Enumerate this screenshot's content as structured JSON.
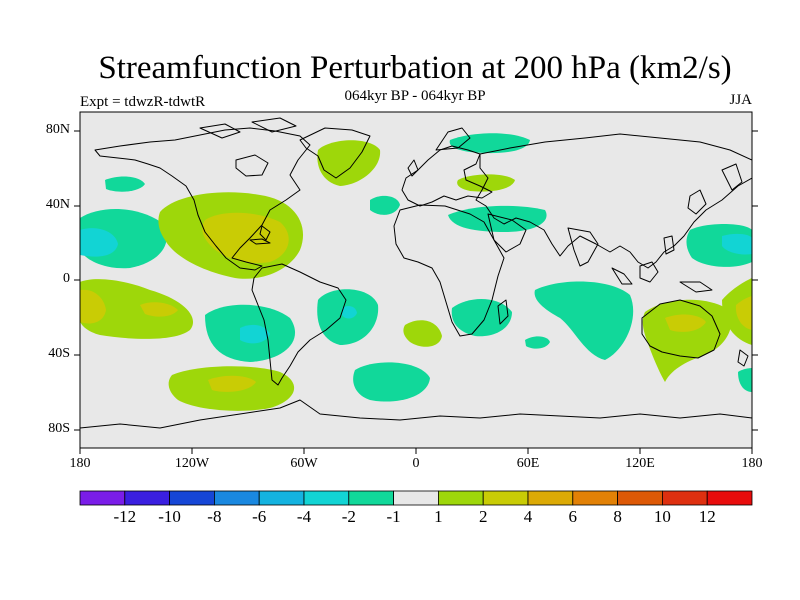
{
  "title": "Streamfunction Perturbation at 200 hPa (km2/s)",
  "subtitle": "064kyr BP - 064kyr BP",
  "left_label": "Expt = tdwzR-tdwtR",
  "right_label": "JJA",
  "lat_ticks": [
    "80N",
    "40N",
    "0",
    "40S",
    "80S"
  ],
  "lon_ticks": [
    "180",
    "120W",
    "60W",
    "0",
    "60E",
    "120E",
    "180"
  ],
  "colorbar": {
    "labels": [
      "-12",
      "-10",
      "-8",
      "-6",
      "-4",
      "-2",
      "-1",
      "1",
      "2",
      "4",
      "6",
      "8",
      "10",
      "12"
    ],
    "colors": [
      "#7a1de8",
      "#3a1fe0",
      "#1646d6",
      "#1a88e0",
      "#14b3e0",
      "#12d4d4",
      "#11d89a",
      "#e8e8e8",
      "#9ed70a",
      "#c9cc05",
      "#dcaa05",
      "#e28106",
      "#dd5906",
      "#de3010",
      "#e80c0c"
    ]
  },
  "colors": {
    "background": "#e8e8e8",
    "neg_light": "#11d89a",
    "neg_medium": "#12d4d4",
    "pos_light": "#9ed70a",
    "pos_medium": "#c9cc05"
  }
}
